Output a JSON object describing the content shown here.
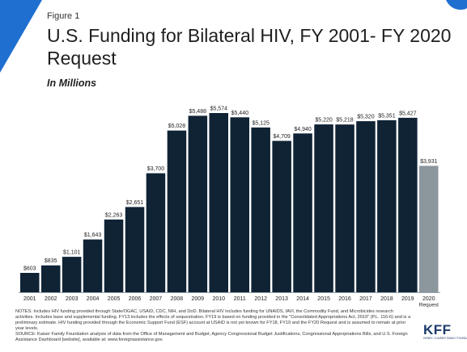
{
  "slide": {
    "figure_label": "Figure 1",
    "title": "U.S. Funding for Bilateral HIV, FY 2001- FY 2020 Request",
    "subtitle": "In Millions",
    "notes": "NOTES: Includes HIV funding provided through State/OGAC, USAID, CDC, NIH, and DoD. Bilateral HIV includes funding for UNAIDS, IAVI, the Commodity Fund, and Microbicides research activities. Includes base and supplemental funding. FY13 includes the effects of sequestration. FY19 is based on funding provided in the \"Consolidated Appropriations Act, 2019\" (P.L. 116-6) and is a preliminary estimate. HIV funding provided through the Economic Support Fund (ESF) account at USAID is not yet known for FY18, FY19 and the FY20 Request and is assumed to remain at prior year levels.",
    "source": "SOURCE: Kaiser Family Foundation analysis of data from the Office of Management and Budget, Agency Congressional Budget Justifications, Congressional Appropriations Bills, and U.S. Foreign Assistance Dashboard [website], available at: www.foreignassistance.gov.",
    "logo_text": "KFF",
    "logo_subtext": "HENRY J KAISER FAMILY FOUNDATION",
    "colors": {
      "accent": "#1f6fd1",
      "bar": "#0f2335",
      "request_bar": "#8c969d"
    }
  },
  "chart_data": {
    "type": "bar",
    "categories": [
      "2001",
      "2002",
      "2003",
      "2004",
      "2005",
      "2006",
      "2007",
      "2008",
      "2009",
      "2010",
      "2011",
      "2012",
      "2013",
      "2014",
      "2015",
      "2016",
      "2017",
      "2018",
      "2019",
      "2020"
    ],
    "category_sublabels": [
      "",
      "",
      "",
      "",
      "",
      "",
      "",
      "",
      "",
      "",
      "",
      "",
      "",
      "",
      "",
      "",
      "",
      "",
      "",
      "Request"
    ],
    "values": [
      603,
      835,
      1101,
      1643,
      2263,
      2651,
      3700,
      5028,
      5488,
      5574,
      5440,
      5125,
      4709,
      4940,
      5220,
      5218,
      5320,
      5351,
      5427,
      3931
    ],
    "value_labels": [
      "$603",
      "$835",
      "$1,101",
      "$1,643",
      "$2,263",
      "$2,651",
      "$3,700",
      "$5,028",
      "$5,488",
      "$5,574",
      "$5,440",
      "$5,125",
      "$4,709",
      "$4,940",
      "$5,220",
      "$5,218",
      "$5,320",
      "$5,351",
      "$5,427",
      "$3,931"
    ],
    "highlight_index": 19,
    "title": "U.S. Funding for Bilateral HIV, FY 2001- FY 2020 Request",
    "ylabel": "",
    "xlabel": "",
    "ylim": [
      0,
      5574
    ],
    "grid": false,
    "legend": "none"
  }
}
